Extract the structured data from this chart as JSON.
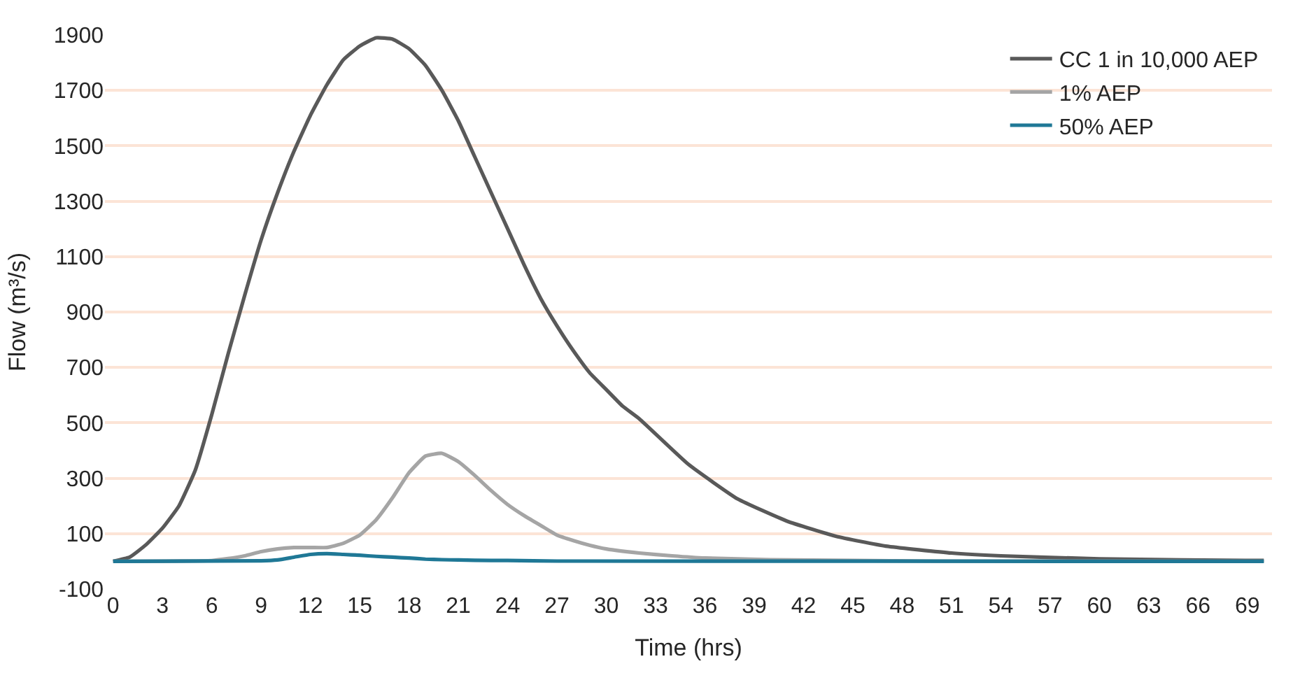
{
  "chart_data": {
    "type": "line",
    "xlabel": "Time (hrs)",
    "ylabel": "Flow (m³/s)",
    "xlim": [
      -0.5,
      70.5
    ],
    "xticks": [
      0,
      3,
      6,
      9,
      12,
      15,
      18,
      21,
      24,
      27,
      30,
      33,
      36,
      39,
      42,
      45,
      48,
      51,
      54,
      57,
      60,
      63,
      66,
      69
    ],
    "ylim": [
      -100,
      1900
    ],
    "yticks": [
      -100,
      100,
      300,
      500,
      700,
      900,
      1100,
      1300,
      1500,
      1700,
      1900
    ],
    "grid": "y",
    "legend": "top right",
    "marker": "none",
    "line_style": "solid",
    "series": [
      {
        "name": "CC 1 in 10,000 AEP",
        "color": "#595959",
        "x": [
          0,
          1,
          2,
          3,
          4,
          5,
          6,
          7,
          8,
          9,
          10,
          11,
          12,
          13,
          14,
          15,
          16,
          17,
          18,
          19,
          20,
          21,
          22,
          23,
          24,
          25,
          26,
          27,
          28,
          29,
          30,
          31,
          32,
          35,
          38,
          41,
          44,
          47,
          51,
          54,
          60,
          65,
          70
        ],
        "values": [
          0,
          15,
          60,
          120,
          200,
          330,
          530,
          750,
          960,
          1160,
          1330,
          1480,
          1610,
          1720,
          1810,
          1860,
          1890,
          1885,
          1850,
          1790,
          1700,
          1590,
          1460,
          1330,
          1200,
          1070,
          950,
          850,
          760,
          680,
          620,
          560,
          515,
          350,
          225,
          145,
          90,
          55,
          30,
          20,
          9,
          5,
          3
        ]
      },
      {
        "name": "1% AEP",
        "color": "#a5a5a5",
        "x": [
          0,
          6,
          7,
          8,
          9,
          10,
          11,
          12,
          13,
          14,
          15,
          16,
          17,
          18,
          19,
          20,
          21,
          22,
          23,
          24,
          25,
          26,
          27,
          28,
          29,
          30,
          32,
          34,
          36,
          40,
          45,
          50,
          70
        ],
        "values": [
          0,
          3,
          10,
          20,
          35,
          45,
          50,
          50,
          50,
          65,
          95,
          150,
          230,
          320,
          380,
          390,
          360,
          310,
          255,
          205,
          165,
          130,
          95,
          75,
          58,
          45,
          30,
          20,
          12,
          6,
          3,
          1,
          0
        ]
      },
      {
        "name": "50% AEP",
        "color": "#1f7896",
        "x": [
          0,
          9,
          10,
          11,
          12,
          13,
          14,
          15,
          16,
          17,
          18,
          19,
          20,
          21,
          22,
          24,
          27,
          70
        ],
        "values": [
          0,
          2,
          5,
          15,
          25,
          28,
          25,
          22,
          18,
          15,
          12,
          8,
          6,
          5,
          4,
          3,
          1,
          0
        ]
      }
    ]
  }
}
